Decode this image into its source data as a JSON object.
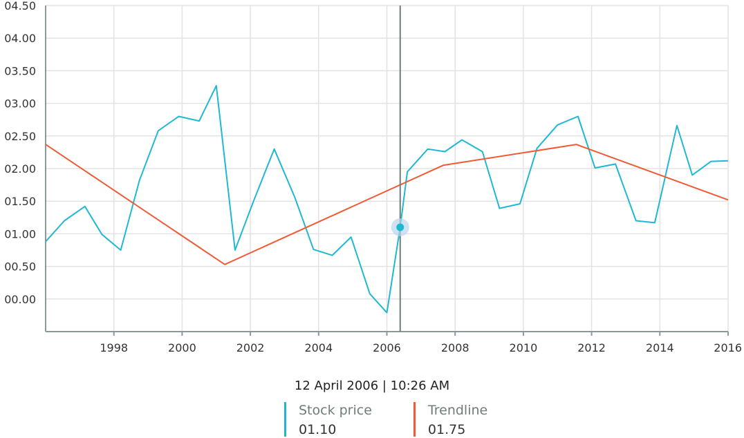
{
  "chart_data": {
    "type": "line",
    "xlim": [
      1996,
      2016
    ],
    "ylim": [
      -0.5,
      4.5
    ],
    "x_ticks": [
      1998,
      2000,
      2002,
      2004,
      2006,
      2008,
      2010,
      2012,
      2014,
      2016
    ],
    "y_ticks": [
      0,
      0.5,
      1,
      1.5,
      2,
      2.5,
      3,
      3.5,
      4,
      4.5
    ],
    "y_tick_labels": [
      "00.00",
      "00.50",
      "01.00",
      "01.50",
      "02.00",
      "02.50",
      "03.00",
      "03.50",
      "04.00",
      "04.50"
    ],
    "grid": true,
    "legend_position": "bottom-center",
    "crosshair_x": 2006.39,
    "series": [
      {
        "name": "Stock price",
        "color": "#1fb8d3",
        "x": [
          1996.0,
          1996.55,
          1997.15,
          1997.65,
          1998.2,
          1998.75,
          1999.3,
          1999.9,
          2000.5,
          2001.0,
          2001.55,
          2002.1,
          2002.7,
          2003.3,
          2003.85,
          2004.4,
          2004.95,
          2005.5,
          2006.0,
          2006.39,
          2006.6,
          2007.2,
          2007.7,
          2008.2,
          2008.8,
          2009.3,
          2009.9,
          2010.4,
          2011.0,
          2011.6,
          2012.1,
          2012.7,
          2013.3,
          2013.85,
          2014.5,
          2014.95,
          2015.5,
          2016.0
        ],
        "values": [
          0.88,
          1.2,
          1.42,
          0.99,
          0.75,
          1.82,
          2.58,
          2.8,
          2.73,
          3.27,
          0.75,
          1.51,
          2.3,
          1.56,
          0.76,
          0.67,
          0.95,
          0.08,
          -0.21,
          1.1,
          1.95,
          2.3,
          2.26,
          2.44,
          2.26,
          1.39,
          1.46,
          2.31,
          2.67,
          2.8,
          2.01,
          2.07,
          1.2,
          1.17,
          2.66,
          1.9,
          2.11,
          2.12
        ]
      },
      {
        "name": "Trendline",
        "color": "#f05a33",
        "x": [
          1996.0,
          2001.25,
          2007.65,
          2011.55,
          2016.0
        ],
        "values": [
          2.37,
          0.53,
          2.05,
          2.37,
          1.52
        ]
      }
    ]
  },
  "readout": {
    "datetime": "12 April 2006 | 10:26 AM",
    "items": [
      {
        "name": "Stock price",
        "value": "01.10",
        "color": "#1fb8d3"
      },
      {
        "name": "Trendline",
        "value": "01.75",
        "color": "#f05a33"
      }
    ]
  }
}
